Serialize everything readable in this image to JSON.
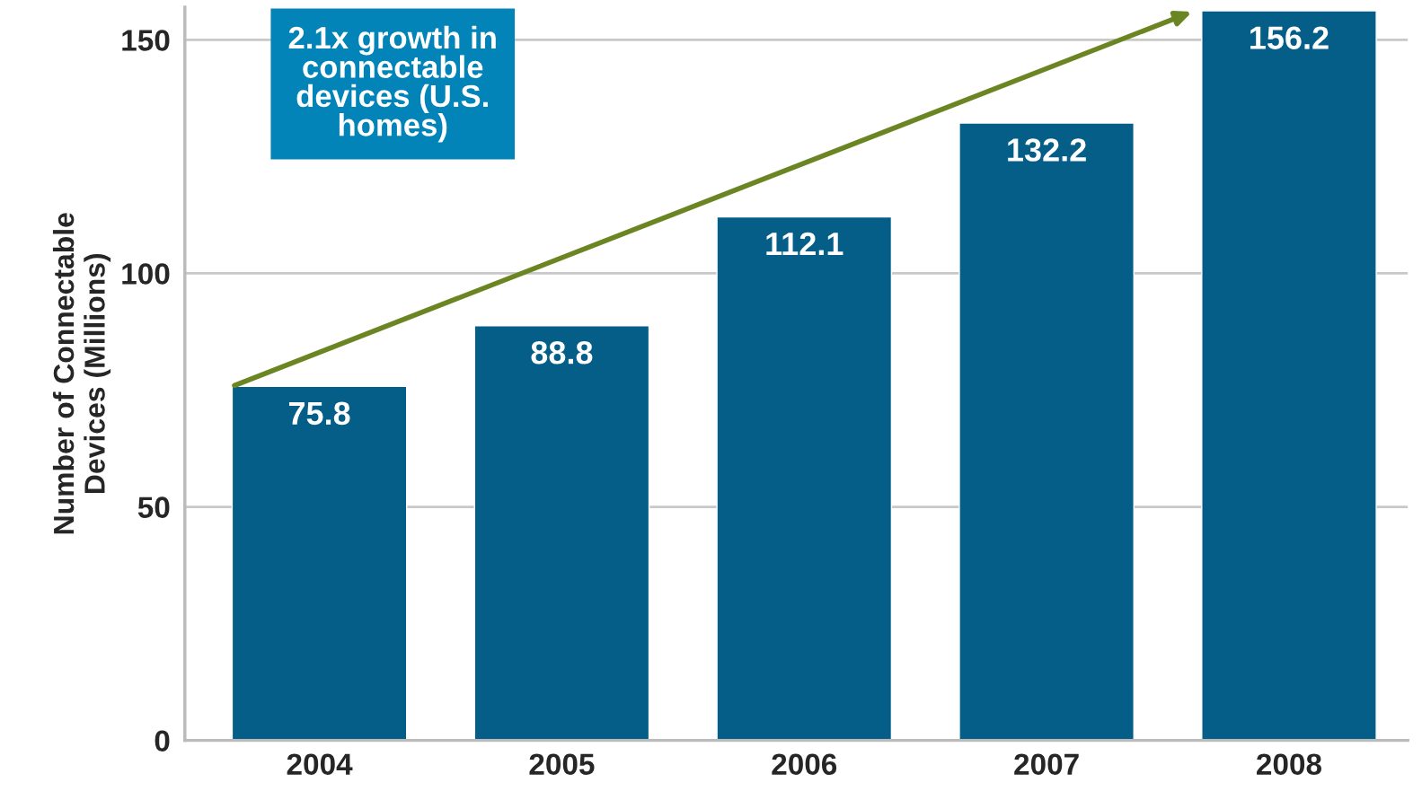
{
  "chart_data": {
    "type": "bar",
    "ylabel": "Number of Connectable\nDevices (Millions)",
    "categories": [
      "2004",
      "2005",
      "2006",
      "2007",
      "2008"
    ],
    "values": [
      75.8,
      88.8,
      112.1,
      132.2,
      156.2
    ],
    "color": "#045e87",
    "data_labels": true,
    "ylim": [
      0,
      157
    ],
    "yticks": [
      0,
      50,
      100,
      150
    ],
    "grid": "y",
    "legend": false,
    "annotations": [
      "2.1x growth in\nconnectable\ndevices (U.S.\nhomes)"
    ]
  }
}
